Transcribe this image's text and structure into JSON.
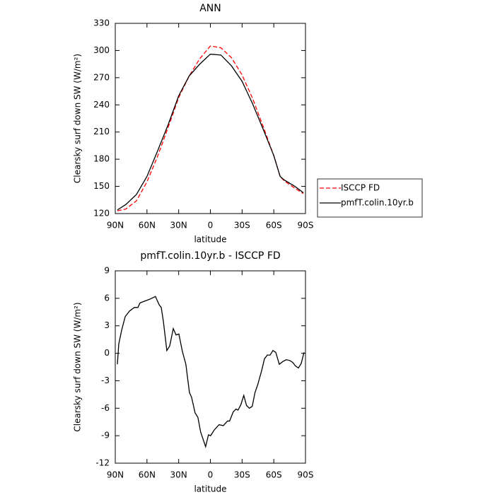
{
  "chart_data": [
    {
      "type": "line",
      "title": "ANN",
      "xlabel": "latitude",
      "ylabel": "Clearsky surf down SW (W/m²)",
      "x": [
        88,
        80,
        70,
        60,
        50,
        40,
        30,
        20,
        10,
        0,
        -10,
        -20,
        -30,
        -40,
        -50,
        -60,
        -66,
        -70,
        -80,
        -88
      ],
      "series": [
        {
          "name": "ISCCP FD",
          "color": "#ff0000",
          "linestyle": "dashed",
          "values": [
            123,
            125,
            134,
            155,
            183,
            215,
            248,
            272,
            291,
            305,
            303,
            292,
            273,
            247,
            216,
            184,
            161,
            156,
            148,
            142
          ]
        },
        {
          "name": "pmfT.colin.10yr.b",
          "color": "#000000",
          "linestyle": "solid",
          "values": [
            124,
            130,
            141,
            161,
            189,
            218,
            250,
            272,
            285,
            296,
            295,
            283,
            266,
            241,
            213,
            184,
            161,
            157,
            150,
            143
          ]
        }
      ],
      "xlim": [
        90,
        -90
      ],
      "xticks": [
        {
          "value": 90,
          "label": "90N"
        },
        {
          "value": 60,
          "label": "60N"
        },
        {
          "value": 30,
          "label": "30N"
        },
        0,
        {
          "value": -30,
          "label": "30S"
        },
        {
          "value": -60,
          "label": "60S"
        },
        {
          "value": -90,
          "label": "90S"
        }
      ],
      "ylim": [
        120,
        330
      ],
      "yticks": [
        120,
        150,
        180,
        210,
        240,
        270,
        300,
        330
      ],
      "legend": "right"
    },
    {
      "type": "line",
      "title": "pmfT.colin.10yr.b - ISCCP FD",
      "xlabel": "latitude",
      "ylabel": "Clearsky surf down SW (W/m²)",
      "x": [
        88,
        86.7,
        84,
        80.6,
        76.6,
        72,
        68.6,
        66.6,
        62,
        57.4,
        52,
        48.5,
        46.5,
        44.5,
        41.2,
        38.5,
        35.1,
        32.5,
        29.8,
        26.5,
        23.2,
        19.8,
        17.8,
        14.5,
        11.8,
        9.2,
        4.5,
        1.8,
        -0.2,
        -3.5,
        -8.2,
        -12.2,
        -16.2,
        -18.2,
        -21.6,
        -24.2,
        -26.2,
        -28.9,
        -31.6,
        -34.2,
        -36.9,
        -39.6,
        -42.2,
        -44.9,
        -48.5,
        -51.2,
        -53.9,
        -56.5,
        -59.2,
        -61.9,
        -65.2,
        -68.6,
        -71.9,
        -75.3,
        -77.9,
        -80.6,
        -83.3,
        -86,
        -88.6
      ],
      "values": [
        -1.2,
        1,
        2.5,
        4,
        4.6,
        5,
        5,
        5.5,
        5.7,
        5.9,
        6.2,
        5.3,
        5,
        3.5,
        0.3,
        0.8,
        2.7,
        2,
        2.1,
        0.2,
        -1.2,
        -4.3,
        -4.8,
        -6.5,
        -7,
        -8.6,
        -10.2,
        -8.9,
        -9,
        -8.4,
        -7.8,
        -7.9,
        -7.4,
        -7.4,
        -6.4,
        -6.1,
        -6.2,
        -5.6,
        -4.6,
        -5.7,
        -6,
        -5.8,
        -4.3,
        -3.4,
        -1.9,
        -0.6,
        -0.2,
        -0.2,
        0.3,
        0.1,
        -1.2,
        -0.9,
        -0.7,
        -0.8,
        -1,
        -1.4,
        -1.6,
        -1.1,
        0.1
      ],
      "color": "#000000",
      "xlim": [
        90,
        -90
      ],
      "xticks": [
        {
          "value": 90,
          "label": "90N"
        },
        {
          "value": 60,
          "label": "60N"
        },
        {
          "value": 30,
          "label": "30N"
        },
        0,
        {
          "value": -30,
          "label": "30S"
        },
        {
          "value": -60,
          "label": "60S"
        },
        {
          "value": -90,
          "label": "90S"
        }
      ],
      "ylim": [
        -12,
        9
      ],
      "yticks": [
        -12,
        -9,
        -6,
        -3,
        0,
        3,
        6,
        9
      ]
    }
  ]
}
